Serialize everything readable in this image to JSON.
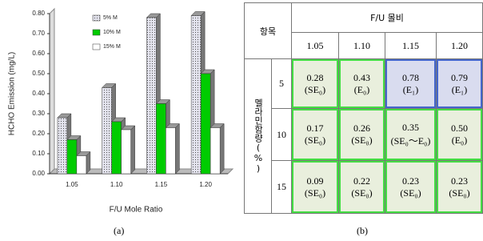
{
  "chart_data": {
    "type": "bar3d",
    "y_label": "HCHO Emission (mg/L)",
    "x_label": "F/U Mole Ratio",
    "caption": "(a)",
    "categories": [
      "1.05",
      "1.10",
      "1.15",
      "1.20"
    ],
    "series": [
      {
        "name": "5% M",
        "color": "#e4e4ee",
        "values": [
          0.28,
          0.43,
          0.78,
          0.79
        ]
      },
      {
        "name": "10% M",
        "color": "#00cc00",
        "values": [
          0.17,
          0.26,
          0.35,
          0.5
        ]
      },
      {
        "name": "15% M",
        "color": "#ffffff",
        "values": [
          0.09,
          0.22,
          0.23,
          0.23
        ]
      }
    ],
    "ylim": [
      0,
      0.8
    ],
    "yticks": [
      {
        "value": 0,
        "label": "0.00"
      },
      {
        "value": 0.1,
        "label": "0.10"
      },
      {
        "value": 0.2,
        "label": "0.20"
      },
      {
        "value": 0.3,
        "label": "0.30"
      },
      {
        "value": 0.4,
        "label": "0.40"
      },
      {
        "value": 0.5,
        "label": "0.50"
      },
      {
        "value": 0.6,
        "label": "0.60"
      },
      {
        "value": 0.7,
        "label": "0.70"
      },
      {
        "value": 0.8,
        "label": "0.80"
      }
    ],
    "grid": false
  },
  "table": {
    "corner": "항목",
    "group_header": "F/U 몰비",
    "caption": "(b)",
    "columns": [
      "1.05",
      "1.10",
      "1.15",
      "1.20"
    ],
    "row_header": "멜라민함량(%)",
    "rows": [
      {
        "label": "5",
        "cells": [
          [
            "0.28",
            "(SE₀)"
          ],
          [
            "0.43",
            "(E₀)"
          ],
          [
            "0.78",
            "(E₁)"
          ],
          [
            "0.79",
            "(E₁)"
          ]
        ]
      },
      {
        "label": "10",
        "cells": [
          [
            "0.17",
            "(SE₀)"
          ],
          [
            "0.26",
            "(SE₀)"
          ],
          [
            "0.35",
            "(SE₀～E₀)"
          ],
          [
            "0.50",
            "(E₀)"
          ]
        ]
      },
      {
        "label": "15",
        "cells": [
          [
            "0.09",
            "(SE₀)"
          ],
          [
            "0.22",
            "(SE₀)"
          ],
          [
            "0.23",
            "(SE₀)"
          ],
          [
            "0.23",
            "(SE₀)"
          ]
        ]
      }
    ]
  }
}
